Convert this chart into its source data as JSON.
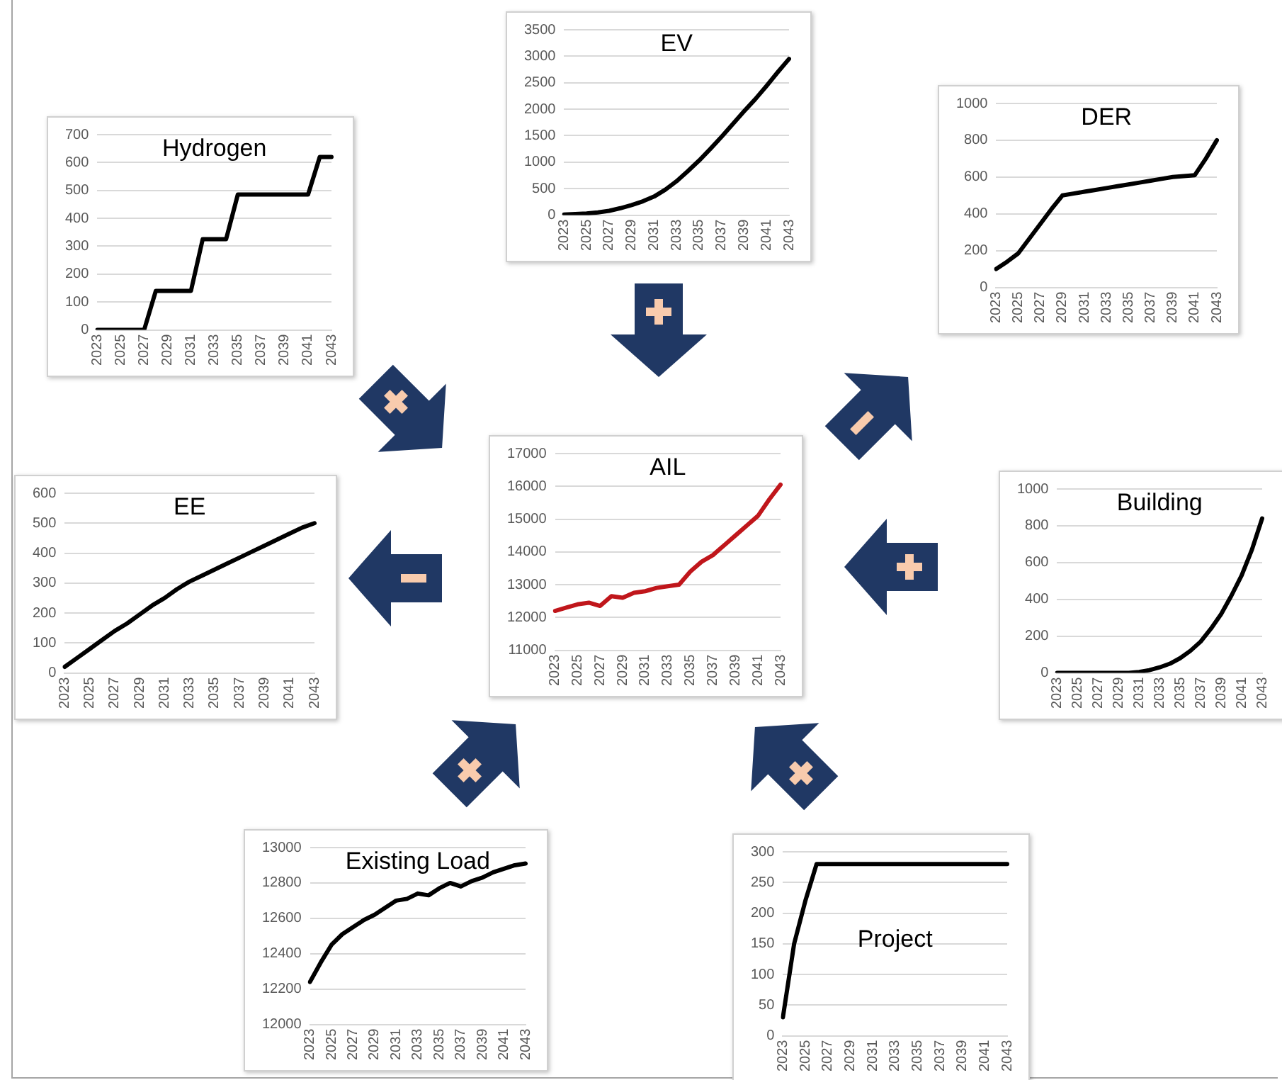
{
  "chart_data": [
    {
      "type": "line",
      "title": "Hydrogen",
      "categories": [
        "2023",
        null,
        "2025",
        null,
        "2027",
        null,
        "2029",
        null,
        "2031",
        null,
        "2033",
        null,
        "2035",
        null,
        "2037",
        null,
        "2039",
        null,
        "2041",
        null,
        "2043"
      ],
      "color": "#000000",
      "values": [
        0,
        0,
        0,
        0,
        0,
        140,
        140,
        140,
        140,
        325,
        325,
        325,
        485,
        485,
        485,
        485,
        485,
        485,
        485,
        620,
        620
      ],
      "ylim": [
        0,
        700
      ],
      "yticks": [
        0,
        100,
        200,
        300,
        400,
        500,
        600,
        700
      ],
      "grid": "y"
    },
    {
      "type": "line",
      "title": "EV",
      "categories": [
        "2023",
        null,
        "2025",
        null,
        "2027",
        null,
        "2029",
        null,
        "2031",
        null,
        "2033",
        null,
        "2035",
        null,
        "2037",
        null,
        "2039",
        null,
        "2041",
        null,
        "2043"
      ],
      "color": "#000000",
      "values": [
        10,
        20,
        30,
        50,
        80,
        130,
        190,
        260,
        350,
        480,
        640,
        830,
        1030,
        1250,
        1480,
        1720,
        1960,
        2190,
        2440,
        2700,
        2950
      ],
      "ylim": [
        0,
        3500
      ],
      "yticks": [
        0,
        500,
        1000,
        1500,
        2000,
        2500,
        3000,
        3500
      ],
      "grid": "y"
    },
    {
      "type": "line",
      "title": "DER",
      "categories": [
        "2023",
        null,
        "2025",
        null,
        "2027",
        null,
        "2029",
        null,
        "2031",
        null,
        "2033",
        null,
        "2035",
        null,
        "2037",
        null,
        "2039",
        null,
        "2041",
        null,
        "2043"
      ],
      "color": "#000000",
      "values": [
        100,
        140,
        185,
        265,
        345,
        425,
        500,
        510,
        520,
        530,
        540,
        550,
        560,
        570,
        580,
        590,
        600,
        605,
        610,
        700,
        800
      ],
      "ylim": [
        0,
        1000
      ],
      "yticks": [
        0,
        200,
        400,
        600,
        800,
        1000
      ],
      "grid": "y"
    },
    {
      "type": "line",
      "title": "EE",
      "categories": [
        "2023",
        null,
        "2025",
        null,
        "2027",
        null,
        "2029",
        null,
        "2031",
        null,
        "2033",
        null,
        "2035",
        null,
        "2037",
        null,
        "2039",
        null,
        "2041",
        null,
        "2043"
      ],
      "color": "#000000",
      "values": [
        20,
        50,
        80,
        110,
        140,
        165,
        195,
        225,
        250,
        280,
        305,
        325,
        345,
        365,
        385,
        405,
        425,
        445,
        465,
        485,
        500
      ],
      "ylim": [
        0,
        600
      ],
      "yticks": [
        0,
        100,
        200,
        300,
        400,
        500,
        600
      ],
      "grid": "y"
    },
    {
      "type": "line",
      "title": "AIL",
      "categories": [
        "2023",
        null,
        "2025",
        null,
        "2027",
        null,
        "2029",
        null,
        "2031",
        null,
        "2033",
        null,
        "2035",
        null,
        "2037",
        null,
        "2039",
        null,
        "2041",
        null,
        "2043"
      ],
      "color": "#c0161b",
      "values": [
        12200,
        12300,
        12400,
        12450,
        12350,
        12650,
        12600,
        12750,
        12800,
        12900,
        12950,
        13000,
        13400,
        13700,
        13900,
        14200,
        14500,
        14800,
        15100,
        15600,
        16050
      ],
      "ylim": [
        11000,
        17000
      ],
      "yticks": [
        11000,
        12000,
        13000,
        14000,
        15000,
        16000,
        17000
      ],
      "grid": "y"
    },
    {
      "type": "line",
      "title": "Building",
      "categories": [
        "2023",
        null,
        "2025",
        null,
        "2027",
        null,
        "2029",
        null,
        "2031",
        null,
        "2033",
        null,
        "2035",
        null,
        "2037",
        null,
        "2039",
        null,
        "2041",
        null,
        "2043"
      ],
      "color": "#000000",
      "values": [
        0,
        0,
        0,
        0,
        0,
        0,
        0,
        0,
        5,
        15,
        30,
        50,
        80,
        120,
        170,
        240,
        320,
        420,
        530,
        670,
        840
      ],
      "ylim": [
        0,
        1000
      ],
      "yticks": [
        0,
        200,
        400,
        600,
        800,
        1000
      ],
      "grid": "y"
    },
    {
      "type": "line",
      "title": "Existing Load",
      "categories": [
        "2023",
        null,
        "2025",
        null,
        "2027",
        null,
        "2029",
        null,
        "2031",
        null,
        "2033",
        null,
        "2035",
        null,
        "2037",
        null,
        "2039",
        null,
        "2041",
        null,
        "2043"
      ],
      "color": "#000000",
      "values": [
        12240,
        12350,
        12450,
        12510,
        12550,
        12590,
        12620,
        12660,
        12700,
        12710,
        12740,
        12730,
        12770,
        12800,
        12780,
        12810,
        12830,
        12860,
        12880,
        12900,
        12910
      ],
      "ylim": [
        12000,
        13000
      ],
      "yticks": [
        12000,
        12200,
        12400,
        12600,
        12800,
        13000
      ],
      "grid": "y"
    },
    {
      "type": "line",
      "title": "Project",
      "categories": [
        "2023",
        null,
        "2025",
        null,
        "2027",
        null,
        "2029",
        null,
        "2031",
        null,
        "2033",
        null,
        "2035",
        null,
        "2037",
        null,
        "2039",
        null,
        "2041",
        null,
        "2043"
      ],
      "color": "#000000",
      "values": [
        30,
        150,
        220,
        280,
        280,
        280,
        280,
        280,
        280,
        280,
        280,
        280,
        280,
        280,
        280,
        280,
        280,
        280,
        280,
        280,
        280
      ],
      "ylim": [
        0,
        300
      ],
      "yticks": [
        0,
        50,
        100,
        150,
        200,
        250,
        300
      ],
      "grid": "y"
    }
  ]
}
